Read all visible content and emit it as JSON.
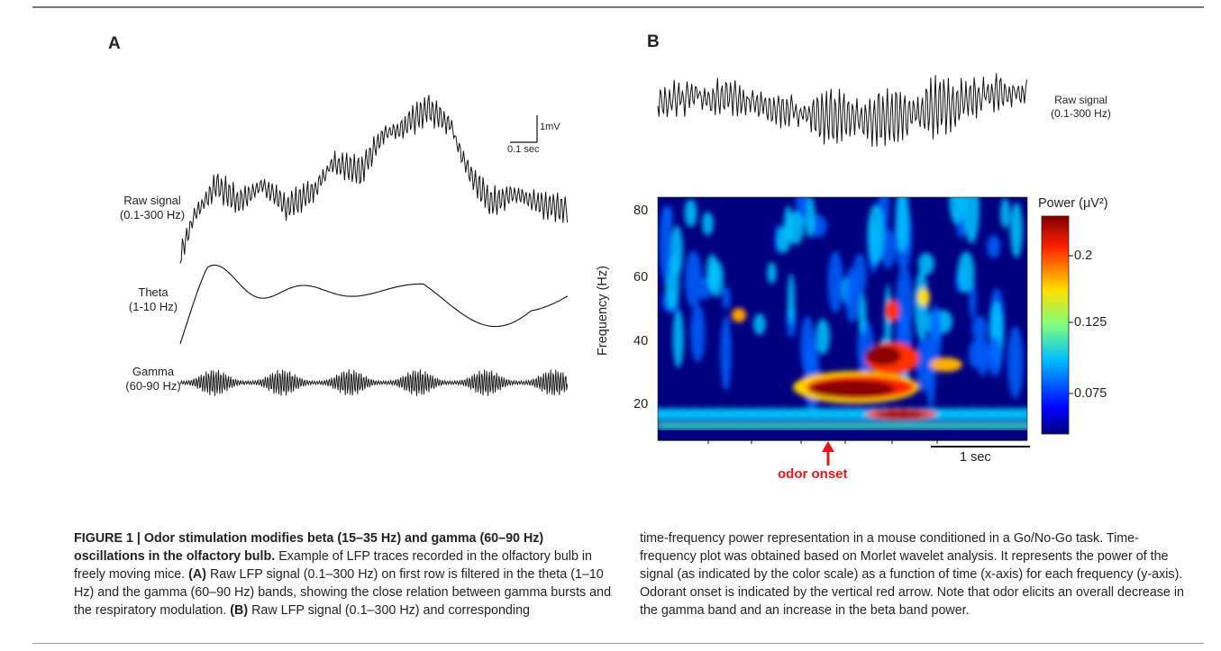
{
  "panels": {
    "a": {
      "letter": "A",
      "raw_label": [
        "Raw signal",
        "(0.1-300 Hz)"
      ],
      "theta_label": [
        "Theta",
        "(1-10 Hz)"
      ],
      "gamma_label": [
        "Gamma",
        "(60-90 Hz)"
      ],
      "scale_voltage": "1mV",
      "scale_time": "0.1 sec"
    },
    "b": {
      "letter": "B",
      "raw_label": [
        "Raw signal",
        "(0.1-300 Hz)"
      ],
      "ylabel": "Frequency (Hz)",
      "yticks": [
        "80",
        "60",
        "40",
        "20"
      ],
      "colorbar_title": "Power (μV²)",
      "colorbar_ticks": [
        "0.2",
        "0.125",
        "0.075"
      ],
      "onset_label": "odor onset",
      "time_scale_label": "1 sec",
      "colors": {
        "onset_arrow": "#e8151a",
        "map_low": "#00007f",
        "map_high": "#7f0000"
      }
    }
  },
  "chart_data": {
    "type": "heatmap",
    "title": "",
    "xlabel": "",
    "ylabel": "Frequency (Hz)",
    "ylim": [
      10,
      85
    ],
    "yticks": [
      20,
      40,
      60,
      80
    ],
    "colorbar": {
      "label": "Power (μV²)",
      "ticks": [
        0.075,
        0.125,
        0.2
      ]
    },
    "annotation": "odor onset",
    "time_scale": "1 sec"
  },
  "caption": {
    "left": {
      "title": "FIGURE 1 | Odor stimulation modifies beta (15–35 Hz) and gamma (60–90 Hz) oscillations in the olfactory bulb.",
      "part1": " Example of LFP traces recorded in the olfactory bulb in freely moving mice. ",
      "a_tag": "(A)",
      "part2": " Raw LFP signal (0.1–300 Hz) on first row is filtered in the theta (1–10 Hz) and the gamma (60–90 Hz) bands, showing the close relation between gamma bursts and the respiratory modulation. ",
      "b_tag": "(B)",
      "part3": " Raw LFP signal (0.1–300 Hz) and corresponding"
    },
    "right": "time-frequency power representation in a mouse conditioned in a Go/No-Go task. Time-frequency plot was obtained based on Morlet wavelet analysis. It represents the power of the signal (as indicated by the color scale) as a function of time (x-axis) for each frequency (y-axis). Odorant onset is indicated by the vertical red arrow. Note that odor elicits an overall decrease in the gamma band and an increase in the beta band power."
  }
}
